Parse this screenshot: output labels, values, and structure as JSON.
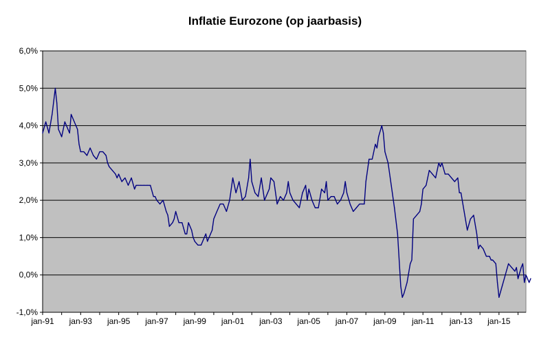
{
  "chart_data": {
    "type": "line",
    "title": "Inflatie Eurozone (op jaarbasis)",
    "xlabel": "",
    "ylabel": "",
    "x_tick_labels": [
      "jan-91",
      "jan-93",
      "jan-95",
      "jan-97",
      "jan-99",
      "jan-01",
      "jan-03",
      "jan-05",
      "jan-07",
      "jan-09",
      "jan-11",
      "jan-13",
      "jan-15"
    ],
    "y_tick_labels": [
      "-1,0%",
      "0,0%",
      "1,0%",
      "2,0%",
      "3,0%",
      "4,0%",
      "5,0%",
      "6,0%"
    ],
    "ylim": [
      -1.0,
      6.0
    ],
    "xlim": [
      "jan-91",
      "jun-16"
    ],
    "grid": "horizontal",
    "plot_background": "#c0c0c0",
    "line_color": "#000080",
    "series": [
      {
        "points": [
          [
            "jan-91",
            3.8
          ],
          [
            "mrt-91",
            4.1
          ],
          [
            "mei-91",
            3.8
          ],
          [
            "jul-91",
            4.3
          ],
          [
            "sep-91",
            5.0
          ],
          [
            "okt-91",
            4.6
          ],
          [
            "nov-91",
            3.9
          ],
          [
            "dec-91",
            3.8
          ],
          [
            "jan-92",
            3.7
          ],
          [
            "mrt-92",
            4.1
          ],
          [
            "mei-92",
            3.9
          ],
          [
            "jun-92",
            3.8
          ],
          [
            "jul-92",
            4.3
          ],
          [
            "sep-92",
            4.1
          ],
          [
            "nov-92",
            3.9
          ],
          [
            "dec-92",
            3.5
          ],
          [
            "jan-93",
            3.3
          ],
          [
            "mrt-93",
            3.3
          ],
          [
            "mei-93",
            3.2
          ],
          [
            "jul-93",
            3.4
          ],
          [
            "sep-93",
            3.2
          ],
          [
            "nov-93",
            3.1
          ],
          [
            "dec-93",
            3.2
          ],
          [
            "jan-94",
            3.3
          ],
          [
            "mrt-94",
            3.3
          ],
          [
            "mei-94",
            3.2
          ],
          [
            "jun-94",
            3.0
          ],
          [
            "jul-94",
            2.9
          ],
          [
            "sep-94",
            2.8
          ],
          [
            "nov-94",
            2.7
          ],
          [
            "dec-94",
            2.6
          ],
          [
            "jan-95",
            2.7
          ],
          [
            "mrt-95",
            2.5
          ],
          [
            "mei-95",
            2.6
          ],
          [
            "jul-95",
            2.4
          ],
          [
            "sep-95",
            2.6
          ],
          [
            "nov-95",
            2.3
          ],
          [
            "dec-95",
            2.4
          ],
          [
            "jan-96",
            2.4
          ],
          [
            "mrt-96",
            2.4
          ],
          [
            "mei-96",
            2.4
          ],
          [
            "jul-96",
            2.4
          ],
          [
            "sep-96",
            2.4
          ],
          [
            "nov-96",
            2.1
          ],
          [
            "dec-96",
            2.1
          ],
          [
            "jan-97",
            2.0
          ],
          [
            "mrt-97",
            1.9
          ],
          [
            "mei-97",
            2.0
          ],
          [
            "jul-97",
            1.7
          ],
          [
            "aug-97",
            1.6
          ],
          [
            "sep-97",
            1.3
          ],
          [
            "nov-97",
            1.4
          ],
          [
            "dec-97",
            1.5
          ],
          [
            "jan-98",
            1.7
          ],
          [
            "mrt-98",
            1.4
          ],
          [
            "mei-98",
            1.4
          ],
          [
            "jul-98",
            1.1
          ],
          [
            "aug-98",
            1.1
          ],
          [
            "sep-98",
            1.4
          ],
          [
            "nov-98",
            1.2
          ],
          [
            "dec-98",
            1.0
          ],
          [
            "jan-99",
            0.9
          ],
          [
            "mrt-99",
            0.8
          ],
          [
            "mei-99",
            0.8
          ],
          [
            "jul-99",
            1.0
          ],
          [
            "aug-99",
            1.1
          ],
          [
            "sep-99",
            0.9
          ],
          [
            "nov-99",
            1.1
          ],
          [
            "dec-99",
            1.2
          ],
          [
            "jan-00",
            1.5
          ],
          [
            "mrt-00",
            1.7
          ],
          [
            "mei-00",
            1.9
          ],
          [
            "jul-00",
            1.9
          ],
          [
            "sep-00",
            1.7
          ],
          [
            "nov-00",
            2.0
          ],
          [
            "dec-00",
            2.3
          ],
          [
            "jan-01",
            2.6
          ],
          [
            "mrt-01",
            2.2
          ],
          [
            "mei-01",
            2.5
          ],
          [
            "jul-01",
            2.0
          ],
          [
            "sep-01",
            2.1
          ],
          [
            "nov-01",
            2.6
          ],
          [
            "dec-01",
            3.1
          ],
          [
            "jan-02",
            2.5
          ],
          [
            "mrt-02",
            2.2
          ],
          [
            "mei-02",
            2.1
          ],
          [
            "jul-02",
            2.6
          ],
          [
            "sep-02",
            2.0
          ],
          [
            "nov-02",
            2.2
          ],
          [
            "dec-02",
            2.3
          ],
          [
            "jan-03",
            2.6
          ],
          [
            "mrt-03",
            2.5
          ],
          [
            "mei-03",
            1.9
          ],
          [
            "jul-03",
            2.1
          ],
          [
            "sep-03",
            2.0
          ],
          [
            "nov-03",
            2.2
          ],
          [
            "dec-03",
            2.5
          ],
          [
            "jan-04",
            2.2
          ],
          [
            "mrt-04",
            2.0
          ],
          [
            "mei-04",
            1.9
          ],
          [
            "jul-04",
            1.8
          ],
          [
            "aug-04",
            2.0
          ],
          [
            "sep-04",
            2.2
          ],
          [
            "nov-04",
            2.4
          ],
          [
            "dec-04",
            2.0
          ],
          [
            "jan-05",
            2.3
          ],
          [
            "mrt-05",
            2.0
          ],
          [
            "mei-05",
            1.8
          ],
          [
            "jul-05",
            1.8
          ],
          [
            "sep-05",
            2.3
          ],
          [
            "nov-05",
            2.2
          ],
          [
            "dec-05",
            2.5
          ],
          [
            "jan-06",
            2.0
          ],
          [
            "mrt-06",
            2.1
          ],
          [
            "mei-06",
            2.1
          ],
          [
            "jul-06",
            1.9
          ],
          [
            "sep-06",
            2.0
          ],
          [
            "nov-06",
            2.2
          ],
          [
            "dec-06",
            2.5
          ],
          [
            "jan-07",
            2.2
          ],
          [
            "mrt-07",
            1.9
          ],
          [
            "mei-07",
            1.7
          ],
          [
            "jul-07",
            1.8
          ],
          [
            "sep-07",
            1.9
          ],
          [
            "nov-07",
            1.9
          ],
          [
            "dec-07",
            1.9
          ],
          [
            "jan-08",
            2.5
          ],
          [
            "mrt-08",
            3.1
          ],
          [
            "mei-08",
            3.1
          ],
          [
            "jul-08",
            3.5
          ],
          [
            "aug-08",
            3.4
          ],
          [
            "sep-08",
            3.7
          ],
          [
            "nov-08",
            4.0
          ],
          [
            "dec-08",
            3.8
          ],
          [
            "jan-09",
            3.3
          ],
          [
            "mrt-09",
            3.0
          ],
          [
            "mei-09",
            2.4
          ],
          [
            "jul-09",
            1.8
          ],
          [
            "sep-09",
            1.1
          ],
          [
            "nov-09",
            -0.3
          ],
          [
            "dec-09",
            -0.6
          ],
          [
            "jan-10",
            -0.5
          ],
          [
            "mrt-10",
            -0.2
          ],
          [
            "mei-10",
            0.3
          ],
          [
            "jun-10",
            0.4
          ],
          [
            "jul-10",
            1.5
          ],
          [
            "sep-10",
            1.6
          ],
          [
            "nov-10",
            1.7
          ],
          [
            "dec-10",
            1.9
          ],
          [
            "jan-11",
            2.3
          ],
          [
            "mrt-11",
            2.4
          ],
          [
            "mei-11",
            2.8
          ],
          [
            "jul-11",
            2.7
          ],
          [
            "sep-11",
            2.6
          ],
          [
            "nov-11",
            3.0
          ],
          [
            "dec-11",
            2.9
          ],
          [
            "jan-12",
            3.0
          ],
          [
            "mrt-12",
            2.7
          ],
          [
            "mei-12",
            2.7
          ],
          [
            "jul-12",
            2.6
          ],
          [
            "sep-12",
            2.5
          ],
          [
            "nov-12",
            2.6
          ],
          [
            "dec-12",
            2.2
          ],
          [
            "jan-13",
            2.2
          ],
          [
            "mrt-13",
            1.7
          ],
          [
            "mei-13",
            1.2
          ],
          [
            "jul-13",
            1.5
          ],
          [
            "sep-13",
            1.6
          ],
          [
            "nov-13",
            1.1
          ],
          [
            "dec-13",
            0.7
          ],
          [
            "jan-14",
            0.8
          ],
          [
            "mrt-14",
            0.7
          ],
          [
            "mei-14",
            0.5
          ],
          [
            "jul-14",
            0.5
          ],
          [
            "aug-14",
            0.4
          ],
          [
            "sep-14",
            0.4
          ],
          [
            "nov-14",
            0.3
          ],
          [
            "dec-14",
            -0.2
          ],
          [
            "jan-15",
            -0.6
          ],
          [
            "mrt-15",
            -0.3
          ],
          [
            "mei-15",
            0.0
          ],
          [
            "jul-15",
            0.3
          ],
          [
            "sep-15",
            0.2
          ],
          [
            "nov-15",
            0.1
          ],
          [
            "dec-15",
            0.2
          ],
          [
            "jan-16",
            -0.1
          ],
          [
            "mrt-16",
            0.2
          ],
          [
            "apr-16",
            0.3
          ],
          [
            "mei-16",
            -0.2
          ],
          [
            "jun-16",
            0.0
          ],
          [
            "jul-16",
            -0.1
          ],
          [
            "aug-16",
            -0.2
          ],
          [
            "sep-16",
            -0.1
          ]
        ]
      }
    ]
  }
}
